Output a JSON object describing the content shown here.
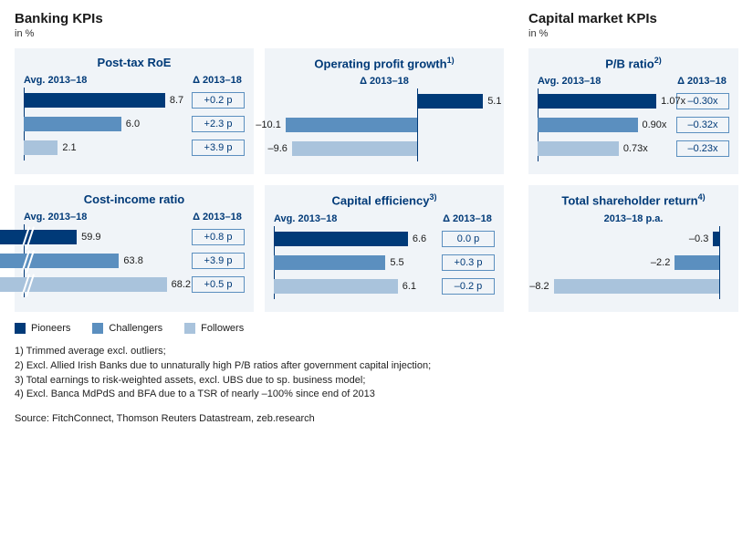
{
  "colors": {
    "pioneers": "#003a78",
    "challengers": "#5b8fbf",
    "followers": "#a9c3dc",
    "panel_bg": "#f0f4f8",
    "title_color": "#003a78"
  },
  "section_left": {
    "title": "Banking KPIs",
    "sub": "in %"
  },
  "section_right": {
    "title": "Capital market KPIs",
    "sub": "in %"
  },
  "header_avg": "Avg. 2013–18",
  "header_delta": "Δ 2013–18",
  "header_tsr": "2013–18 p.a.",
  "charts": {
    "roe": {
      "title": "Post-tax RoE",
      "rows": [
        {
          "value": 8.7,
          "label": "8.7",
          "color": "#003a78",
          "delta": "+0.2 p"
        },
        {
          "value": 6.0,
          "label": "6.0",
          "color": "#5b8fbf",
          "delta": "+2.3 p"
        },
        {
          "value": 2.1,
          "label": "2.1",
          "color": "#a9c3dc",
          "delta": "+3.9 p"
        }
      ],
      "max": 10,
      "axis_pct": 0
    },
    "opg": {
      "title_html": "Operating profit growth<sup>1)</sup>",
      "rows": [
        {
          "value": 5.1,
          "label": "5.1",
          "color": "#003a78"
        },
        {
          "value": -10.1,
          "label": "–10.1",
          "color": "#5b8fbf"
        },
        {
          "value": -9.6,
          "label": "–9.6",
          "color": "#a9c3dc"
        }
      ],
      "min": -11,
      "max": 6,
      "axis_pct": 64.7
    },
    "cir": {
      "title": "Cost-income ratio",
      "rows": [
        {
          "value": 59.9,
          "label": "59.9",
          "color": "#003a78",
          "delta": "+0.8 p",
          "broken": true
        },
        {
          "value": 63.8,
          "label": "63.8",
          "color": "#5b8fbf",
          "delta": "+3.9 p",
          "broken": true
        },
        {
          "value": 68.2,
          "label": "68.2",
          "color": "#a9c3dc",
          "delta": "+0.5 p",
          "broken": true
        }
      ],
      "min": 55,
      "max": 70,
      "axis_pct": 0
    },
    "cap": {
      "title_html": "Capital efficiency<sup>3)</sup>",
      "rows": [
        {
          "value": 6.6,
          "label": "6.6",
          "color": "#003a78",
          "delta": "0.0 p"
        },
        {
          "value": 5.5,
          "label": "5.5",
          "color": "#5b8fbf",
          "delta": "+0.3 p"
        },
        {
          "value": 6.1,
          "label": "6.1",
          "color": "#a9c3dc",
          "delta": "–0.2 p"
        }
      ],
      "max": 8,
      "axis_pct": 0
    },
    "pb": {
      "title_html": "P/B ratio<sup>2)</sup>",
      "rows": [
        {
          "value": 1.07,
          "label": "1.07x",
          "color": "#003a78",
          "delta": "–0.30x"
        },
        {
          "value": 0.9,
          "label": "0.90x",
          "color": "#5b8fbf",
          "delta": "–0.32x"
        },
        {
          "value": 0.73,
          "label": "0.73x",
          "color": "#a9c3dc",
          "delta": "–0.23x"
        }
      ],
      "max": 1.2,
      "axis_pct": 0
    },
    "tsr": {
      "title_html": "Total shareholder return<sup>4)</sup>",
      "rows": [
        {
          "value": -0.3,
          "label": "–0.3",
          "color": "#003a78"
        },
        {
          "value": -2.2,
          "label": "–2.2",
          "color": "#5b8fbf"
        },
        {
          "value": -8.2,
          "label": "–8.2",
          "color": "#a9c3dc"
        }
      ],
      "min": -9,
      "max": 0.5,
      "axis_pct": 94.7
    }
  },
  "legend": [
    {
      "label": "Pioneers",
      "color": "#003a78"
    },
    {
      "label": "Challengers",
      "color": "#5b8fbf"
    },
    {
      "label": "Followers",
      "color": "#a9c3dc"
    }
  ],
  "footnotes": [
    "1) Trimmed average excl. outliers;",
    "2) Excl. Allied Irish Banks due to unnaturally high P/B ratios after government capital injection;",
    "3) Total earnings to risk-weighted assets, excl. UBS due to sp. business model;",
    "4) Excl. Banca MdPdS and BFA due to a TSR of nearly –100% since end of 2013"
  ],
  "source": "Source: FitchConnect, Thomson Reuters Datastream, zeb.research"
}
